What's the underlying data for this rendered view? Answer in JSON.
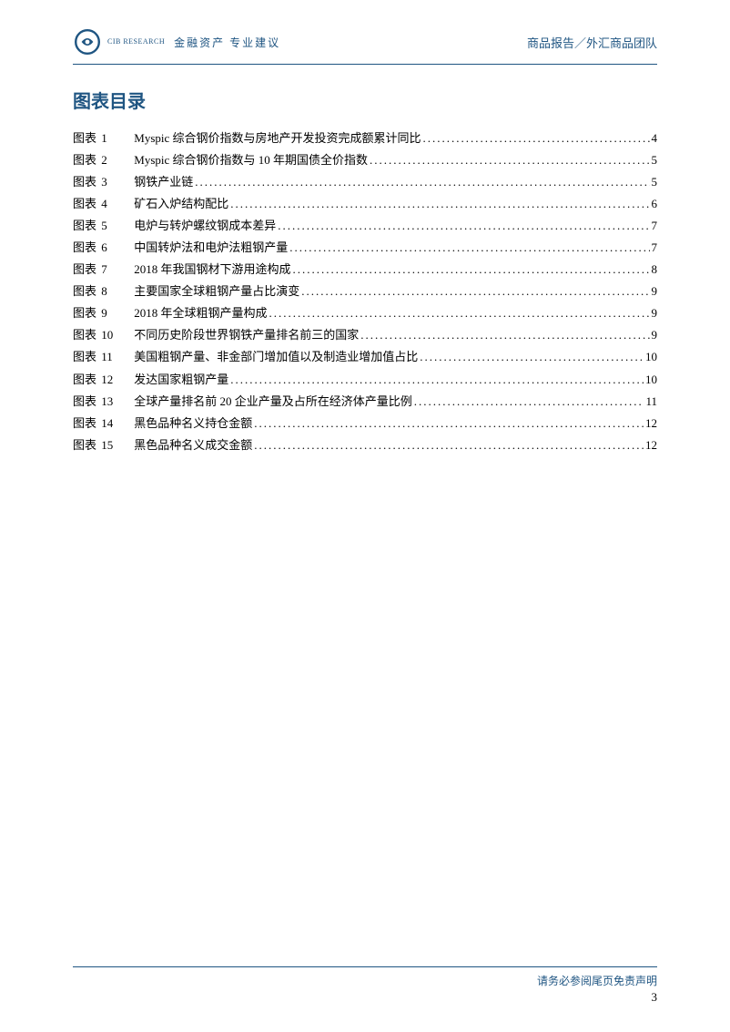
{
  "header": {
    "logo_sub": "CIB RESEARCH",
    "tagline": "金融资产 专业建议",
    "right_text": "商品报告／外汇商品团队"
  },
  "toc": {
    "title": "图表目录",
    "label_prefix": "图表",
    "items": [
      {
        "num": "1",
        "text": "Myspic 综合钢价指数与房地产开发投资完成额累计同比",
        "page": "4"
      },
      {
        "num": "2",
        "text": "Myspic 综合钢价指数与 10 年期国债全价指数",
        "page": "5"
      },
      {
        "num": "3",
        "text": "钢铁产业链",
        "page": "5"
      },
      {
        "num": "4",
        "text": "矿石入炉结构配比",
        "page": "6"
      },
      {
        "num": "5",
        "text": "电炉与转炉螺纹钢成本差异",
        "page": "7"
      },
      {
        "num": "6",
        "text": "中国转炉法和电炉法粗钢产量",
        "page": "7"
      },
      {
        "num": "7",
        "text": "2018 年我国钢材下游用途构成",
        "page": "8"
      },
      {
        "num": "8",
        "text": "主要国家全球粗钢产量占比演变",
        "page": "9"
      },
      {
        "num": "9",
        "text": "2018 年全球粗钢产量构成",
        "page": "9"
      },
      {
        "num": "10",
        "text": "不同历史阶段世界钢铁产量排名前三的国家",
        "page": "9"
      },
      {
        "num": "11",
        "text": "美国粗钢产量、非金部门增加值以及制造业增加值占比",
        "page": "10"
      },
      {
        "num": "12",
        "text": "发达国家粗钢产量",
        "page": "10"
      },
      {
        "num": "13",
        "text": "全球产量排名前 20 企业产量及占所在经济体产量比例",
        "page": "11"
      },
      {
        "num": "14",
        "text": "黑色品种名义持仓金额",
        "page": "12"
      },
      {
        "num": "15",
        "text": "黑色品种名义成交金额",
        "page": "12"
      }
    ]
  },
  "footer": {
    "disclaimer": "请务必参阅尾页免责声明",
    "page_num": "3"
  },
  "colors": {
    "brand": "#1f5582",
    "text": "#000000",
    "bg": "#ffffff"
  }
}
